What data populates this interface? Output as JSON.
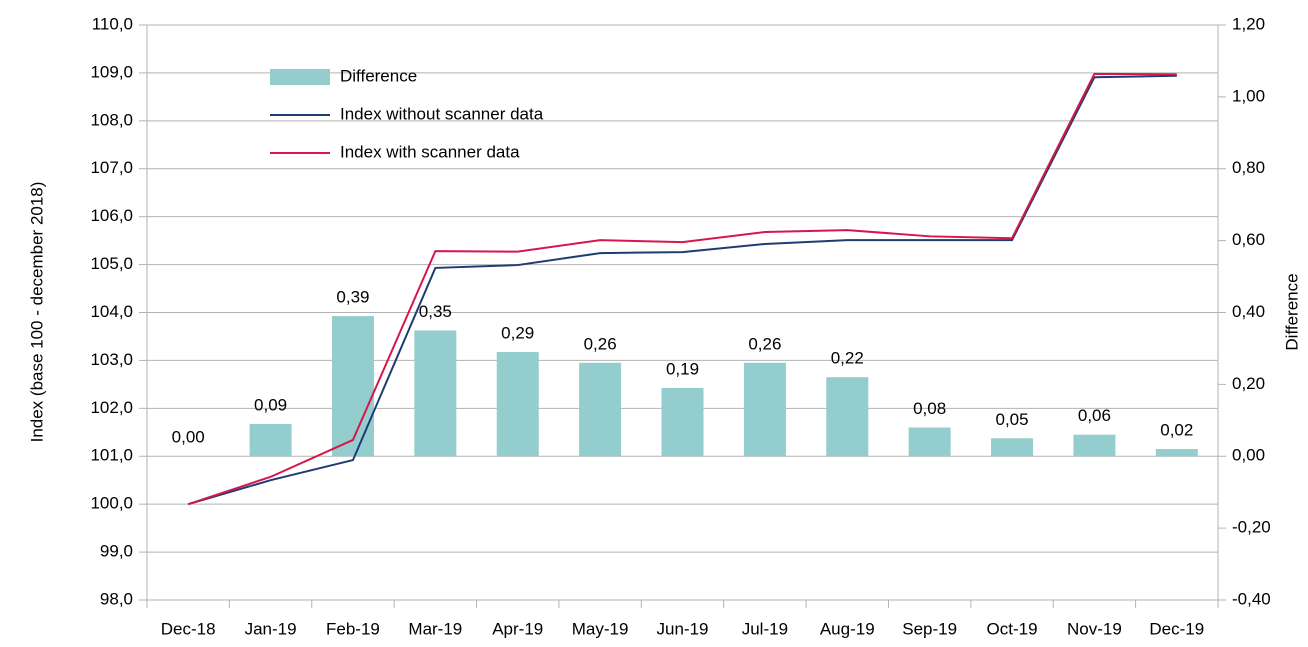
{
  "chart_data": {
    "type": "combo",
    "categories": [
      "Dec-18",
      "Jan-19",
      "Feb-19",
      "Mar-19",
      "Apr-19",
      "May-19",
      "Jun-19",
      "Jul-19",
      "Aug-19",
      "Sep-19",
      "Oct-19",
      "Nov-19",
      "Dec-19"
    ],
    "ylabel": "Index (base 100 - december 2018)",
    "y2label": "Difference",
    "ylim": [
      98,
      110
    ],
    "yticks": [
      {
        "value": 98,
        "label": "98,0"
      },
      {
        "value": 99,
        "label": "99,0"
      },
      {
        "value": 100,
        "label": "100,0"
      },
      {
        "value": 101,
        "label": "101,0"
      },
      {
        "value": 102,
        "label": "102,0"
      },
      {
        "value": 103,
        "label": "103,0"
      },
      {
        "value": 104,
        "label": "104,0"
      },
      {
        "value": 105,
        "label": "105,0"
      },
      {
        "value": 106,
        "label": "106,0"
      },
      {
        "value": 107,
        "label": "107,0"
      },
      {
        "value": 108,
        "label": "108,0"
      },
      {
        "value": 109,
        "label": "109,0"
      },
      {
        "value": 110,
        "label": "110,0"
      }
    ],
    "y2lim": [
      -0.4,
      1.2
    ],
    "y2ticks": [
      {
        "value": -0.4,
        "label": "-0,40"
      },
      {
        "value": -0.2,
        "label": "-0,20"
      },
      {
        "value": 0,
        "label": "0,00"
      },
      {
        "value": 0.2,
        "label": "0,20"
      },
      {
        "value": 0.4,
        "label": "0,40"
      },
      {
        "value": 0.6,
        "label": "0,60"
      },
      {
        "value": 0.8,
        "label": "0,80"
      },
      {
        "value": 1.0,
        "label": "1,00"
      },
      {
        "value": 1.2,
        "label": "1,20"
      }
    ],
    "grid": true,
    "legend": "upper-left",
    "series": [
      {
        "name": "Difference",
        "type": "bar",
        "axis": "y2",
        "color": "#93cdcd",
        "values": [
          0.0,
          0.09,
          0.39,
          0.35,
          0.29,
          0.26,
          0.19,
          0.26,
          0.22,
          0.08,
          0.05,
          0.06,
          0.02
        ],
        "value_labels": [
          "0,00",
          "0,09",
          "0,39",
          "0,35",
          "0,29",
          "0,26",
          "0,19",
          "0,26",
          "0,22",
          "0,08",
          "0,05",
          "0,06",
          "0,02"
        ]
      },
      {
        "name": "Index without scanner data",
        "type": "line",
        "color": "#1f3b73",
        "values": [
          100.0,
          100.5,
          100.92,
          104.93,
          104.99,
          105.24,
          105.26,
          105.43,
          105.51,
          105.51,
          105.51,
          108.91,
          108.94
        ]
      },
      {
        "name": "Index with scanner data",
        "type": "line",
        "color": "#d6174b",
        "values": [
          100.0,
          100.57,
          101.34,
          105.28,
          105.27,
          105.51,
          105.47,
          105.68,
          105.72,
          105.59,
          105.55,
          108.98,
          108.97
        ]
      }
    ]
  }
}
